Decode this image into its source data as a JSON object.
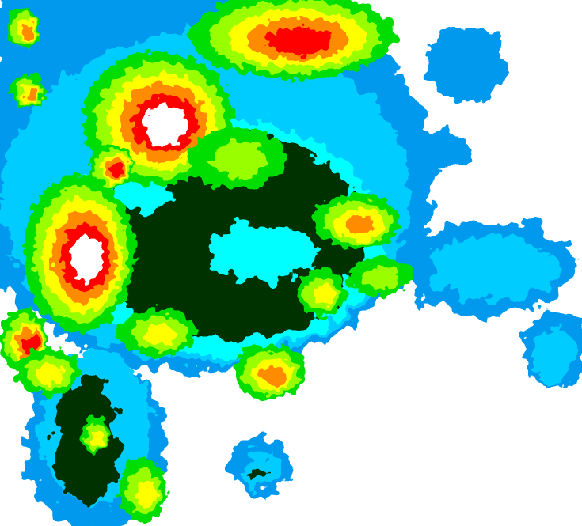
{
  "map": {
    "type": "weather-radar-reflectivity",
    "background": "#ffffff",
    "palette": [
      "#0099ee",
      "#00ccff",
      "#00ffff",
      "#003300",
      "#00dd00",
      "#99ff00",
      "#ffff00",
      "#ff8c00",
      "#ff0000",
      "#ffffff"
    ]
  }
}
